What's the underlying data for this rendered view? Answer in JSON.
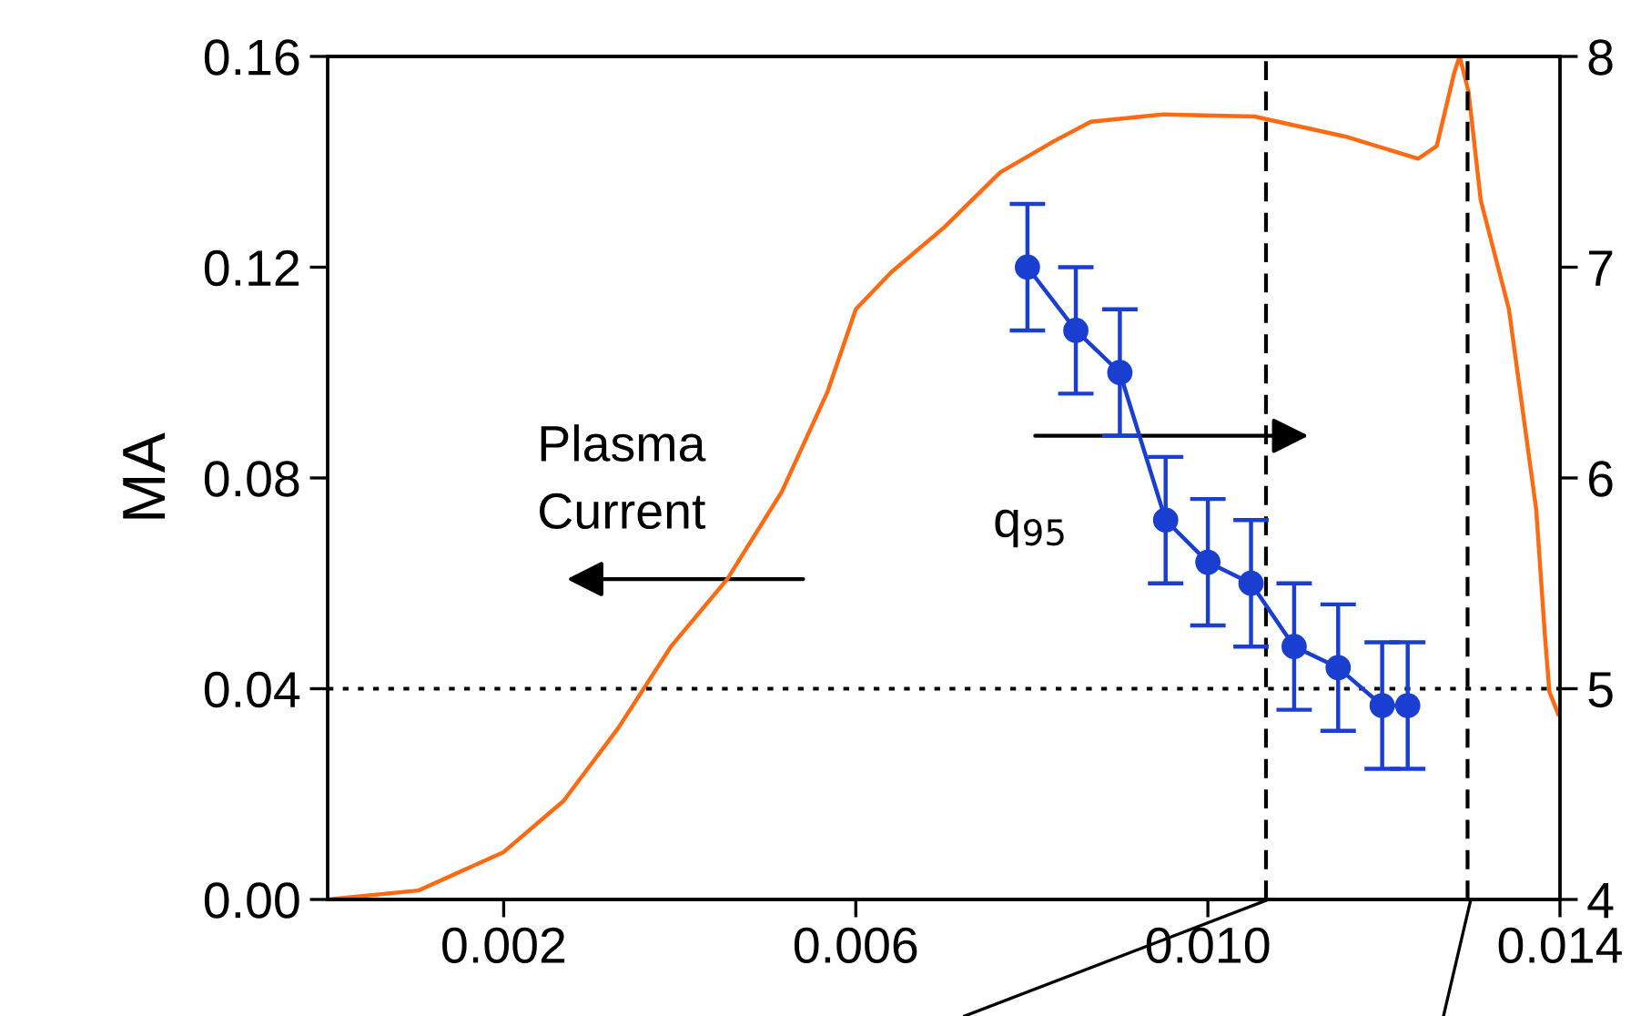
{
  "chart_data": {
    "type": "line",
    "ylabel": "MA",
    "xlim": [
      0,
      0.014
    ],
    "xticks": [
      {
        "value": 0.002,
        "label": "0.002"
      },
      {
        "value": 0.006,
        "label": "0.006"
      },
      {
        "value": 0.01,
        "label": "0.010"
      },
      {
        "value": 0.014,
        "label": "0.014"
      }
    ],
    "ylim": [
      0,
      0.16
    ],
    "yticks": [
      {
        "value": 0,
        "label": "0.00"
      },
      {
        "value": 0.04,
        "label": "0.04"
      },
      {
        "value": 0.08,
        "label": "0.08"
      },
      {
        "value": 0.12,
        "label": "0.12"
      },
      {
        "value": 0.16,
        "label": "0.16"
      }
    ],
    "y2lim": [
      4,
      8
    ],
    "y2ticks": [
      4,
      5,
      6,
      7,
      8
    ],
    "grid": false,
    "series": [
      {
        "name": "Plasma Current",
        "color": "#ff6a13",
        "marker": "none",
        "x": [
          0,
          0.00103,
          0.002,
          0.00268,
          0.0033,
          0.0039,
          0.00454,
          0.00516,
          0.00568,
          0.006,
          0.0064,
          0.007,
          0.00764,
          0.00826,
          0.00867,
          0.0095,
          0.01053,
          0.01156,
          0.01239,
          0.0126,
          0.0128,
          0.01286,
          0.01296,
          0.0131,
          0.01342,
          0.01373,
          0.01383,
          0.01388,
          0.01398
        ],
        "values": [
          0,
          0.0017,
          0.009,
          0.0187,
          0.0325,
          0.048,
          0.0608,
          0.0774,
          0.0964,
          0.112,
          0.119,
          0.1275,
          0.138,
          0.144,
          0.1476,
          0.149,
          0.1486,
          0.1448,
          0.1406,
          0.143,
          0.157,
          0.16,
          0.1534,
          0.1327,
          0.112,
          0.074,
          0.0498,
          0.0394,
          0.0352
        ]
      },
      {
        "name": "q$_{95}$",
        "color": "#1a3fd0",
        "axis": "y2",
        "marker": "circle",
        "x": [
          0.00795,
          0.0085,
          0.009,
          0.00952,
          0.01,
          0.01049,
          0.01098,
          0.01148,
          0.01198,
          0.01227
        ],
        "values": [
          7.0,
          6.7,
          6.5,
          5.8,
          5.6,
          5.5,
          5.2,
          5.1,
          4.92,
          4.92
        ],
        "errors": [
          0.3,
          0.3,
          0.3,
          0.3,
          0.3,
          0.3,
          0.3,
          0.3,
          0.3,
          0.3
        ]
      }
    ],
    "ref_lines": [
      {
        "axis": "x",
        "value": 0.01066,
        "line_style": "dashed",
        "color": "#000000"
      },
      {
        "axis": "x",
        "value": 0.01295,
        "line_style": "dashed",
        "color": "#000000"
      },
      {
        "axis": "y",
        "value": 0.04,
        "line_style": "dotted",
        "color": "#000000"
      }
    ]
  }
}
